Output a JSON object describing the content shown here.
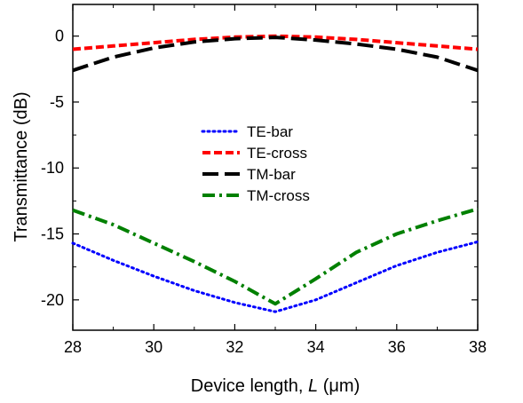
{
  "chart_data": {
    "type": "line",
    "title": "",
    "xlabel_prefix": "Device length, ",
    "xlabel_var": "L",
    "xlabel_unit": " (μm)",
    "ylabel": "Transmittance (dB)",
    "xlim": [
      28,
      38
    ],
    "ylim": [
      -22.3,
      2.4
    ],
    "xticks": [
      28,
      30,
      32,
      34,
      36,
      38
    ],
    "yticks": [
      0,
      -5,
      -10,
      -15,
      -20
    ],
    "xtick_labels": [
      "28",
      "30",
      "32",
      "34",
      "36",
      "38"
    ],
    "ytick_labels": [
      "0",
      "-5",
      "-10",
      "-15",
      "-20"
    ],
    "grid": false,
    "legend_position": "center",
    "series": [
      {
        "name": "TE-bar",
        "color": "#0000ff",
        "style": "dotted",
        "x": [
          28,
          29,
          30,
          31,
          32,
          33,
          34,
          35,
          36,
          37,
          38
        ],
        "y": [
          -15.7,
          -17.0,
          -18.2,
          -19.3,
          -20.2,
          -20.9,
          -20.0,
          -18.7,
          -17.4,
          -16.4,
          -15.6
        ]
      },
      {
        "name": "TE-cross",
        "color": "#ff0000",
        "style": "dashed",
        "x": [
          28,
          29,
          30,
          31,
          32,
          33,
          34,
          35,
          36,
          37,
          38
        ],
        "y": [
          -1.0,
          -0.75,
          -0.5,
          -0.25,
          -0.08,
          0.0,
          -0.08,
          -0.25,
          -0.5,
          -0.75,
          -1.0
        ]
      },
      {
        "name": "TM-bar",
        "color": "#000000",
        "style": "longdash",
        "x": [
          28,
          29,
          30,
          31,
          32,
          33,
          34,
          35,
          36,
          37,
          38
        ],
        "y": [
          -2.6,
          -1.6,
          -0.9,
          -0.45,
          -0.2,
          -0.1,
          -0.3,
          -0.6,
          -1.0,
          -1.6,
          -2.6
        ]
      },
      {
        "name": "TM-cross",
        "color": "#008000",
        "style": "dashdot",
        "x": [
          28,
          29,
          30,
          31,
          32,
          33,
          34,
          35,
          36,
          37,
          38
        ],
        "y": [
          -13.2,
          -14.3,
          -15.7,
          -17.1,
          -18.6,
          -20.3,
          -18.4,
          -16.4,
          -15.0,
          -14.0,
          -13.1
        ]
      }
    ]
  }
}
